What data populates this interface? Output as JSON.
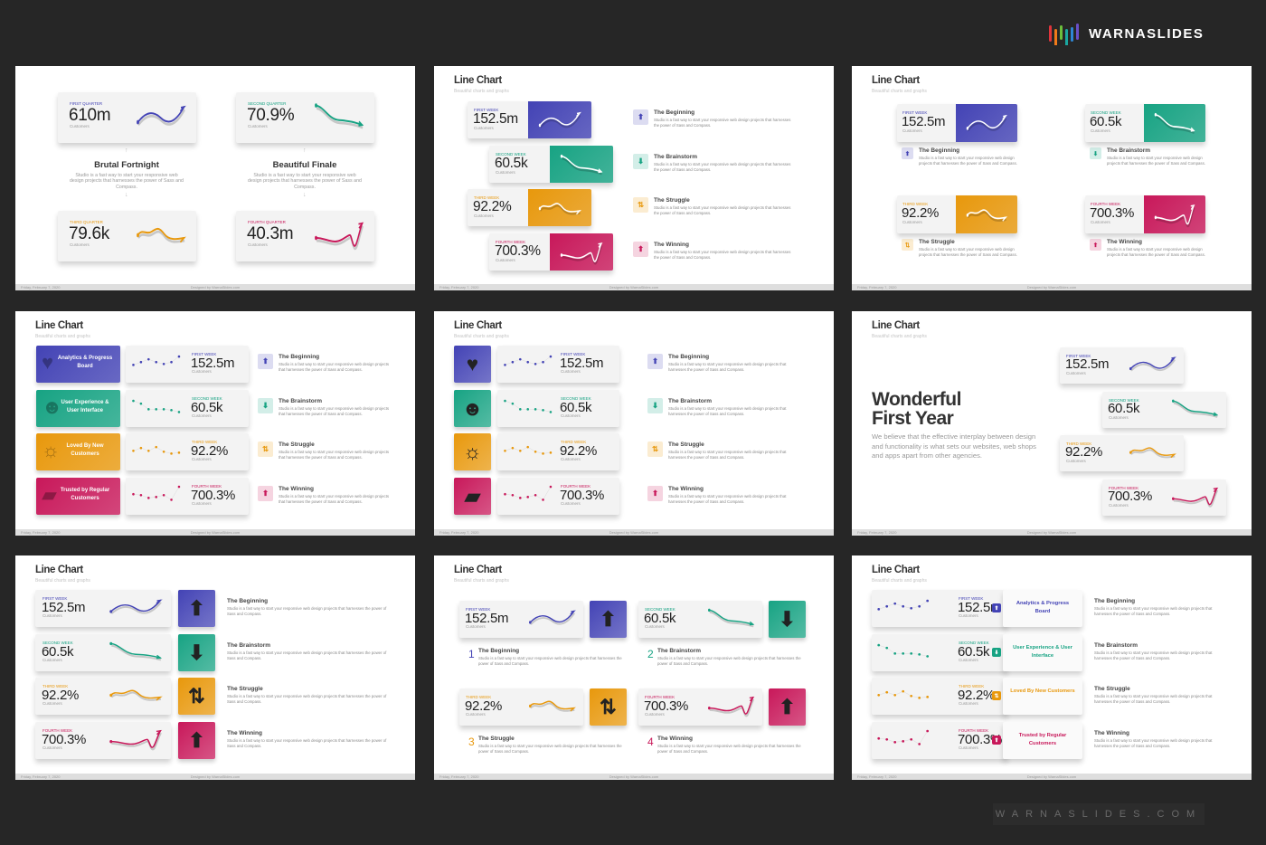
{
  "brand": {
    "name": "WARNASLIDES",
    "bar_colors": [
      "#e0343c",
      "#f07a1a",
      "#6cbf3c",
      "#1aa6a0",
      "#2e86d6",
      "#6a4fc8"
    ],
    "watermark": "WARNASLIDES.COM"
  },
  "colors": [
    "#4343b5",
    "#17a383",
    "#e8980c",
    "#c8185a"
  ],
  "header": {
    "title": "Line Chart",
    "subtitle": "Beautiful charts and graphs"
  },
  "footer": {
    "date": "Friday, February 7, 2020",
    "credit": "Designed by WarnaSlides.com"
  },
  "quarters": [
    {
      "label": "First Quarter",
      "value": "610m",
      "unit": "Customers"
    },
    {
      "label": "Second Quarter",
      "value": "70.9%",
      "unit": "Customers"
    },
    {
      "label": "Third Quarter",
      "value": "79.6k",
      "unit": "Customers"
    },
    {
      "label": "Fourth Quarter",
      "value": "40.3m",
      "unit": "Customers"
    }
  ],
  "quarter_topics": [
    {
      "title": "Brutal Fortnight",
      "desc": "Studio is a fast way to start your responsive web design projects that harnesses the power of Sass and Compass."
    },
    {
      "title": "Beautiful Finale",
      "desc": "Studio is a fast way to start your responsive web design projects that harnesses the power of Sass and Compass."
    }
  ],
  "weeks": [
    {
      "label": "First Week",
      "value": "152.5m",
      "unit": "Customers",
      "trend_icon": "arrow-up"
    },
    {
      "label": "Second Week",
      "value": "60.5k",
      "unit": "Customers",
      "trend_icon": "arrow-down"
    },
    {
      "label": "Third Week",
      "value": "92.2%",
      "unit": "Customers",
      "trend_icon": "arrow-up-down"
    },
    {
      "label": "Fourth Week",
      "value": "700.3%",
      "unit": "Customers",
      "trend_icon": "arrow-up"
    }
  ],
  "items": [
    {
      "number": "1",
      "title": "The Beginning",
      "desc": "Studio is a fast way to start your responsive web design projects that harnesses the power of Sass and Compass."
    },
    {
      "number": "2",
      "title": "The Brainstorm",
      "desc": "Studio is a fast way to start your responsive web design projects that harnesses the power of Sass and Compass."
    },
    {
      "number": "3",
      "title": "The Struggle",
      "desc": "Studio is a fast way to start your responsive web design projects that harnesses the power of Sass and Compass."
    },
    {
      "number": "4",
      "title": "The Winning",
      "desc": "Studio is a fast way to start your responsive web design projects that harnesses the power of Sass and Compass."
    }
  ],
  "categories": [
    {
      "label": "Analytics & Progress Board",
      "icon": "heart-icon"
    },
    {
      "label": "User Experience & User Interface",
      "icon": "head-icon"
    },
    {
      "label": "Loved By New Customers",
      "icon": "lightbulb-icon"
    },
    {
      "label": "Trusted by Regular Customers",
      "icon": "battery-icon"
    }
  ],
  "wonderful": {
    "title_line1": "Wonderful",
    "title_line2": "First Year",
    "desc": "We believe that the effective interplay between design and functionality is what sets our websites, web shops and apps apart from other agencies."
  },
  "slides": [
    "quarters",
    "stacked",
    "grid",
    "labeled",
    "iconed",
    "wonderful",
    "arrows",
    "numbered",
    "outlined"
  ]
}
